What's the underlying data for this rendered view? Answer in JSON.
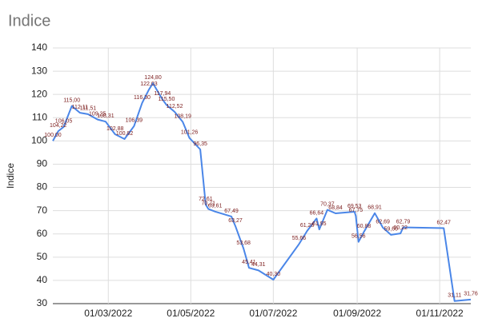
{
  "chart_data": {
    "type": "line",
    "title": "Indice",
    "y_label": "Indice",
    "x": [
      "19/01/2022",
      "23/01/2022",
      "27/01/2022",
      "02/02/2022",
      "08/02/2022",
      "14/02/2022",
      "21/02/2022",
      "27/02/2022",
      "06/03/2022",
      "13/03/2022",
      "20/03/2022",
      "26/03/2022",
      "31/03/2022",
      "03/04/2022",
      "10/04/2022",
      "13/04/2022",
      "19/04/2022",
      "25/04/2022",
      "30/04/2022",
      "08/05/2022",
      "12/05/2022",
      "14/05/2022",
      "19/05/2022",
      "31/05/2022",
      "03/06/2022",
      "09/06/2022",
      "13/06/2022",
      "20/06/2022",
      "01/07/2022",
      "20/07/2022",
      "26/07/2022",
      "02/08/2022",
      "04/08/2022",
      "10/08/2022",
      "16/08/2022",
      "30/08/2022",
      "31/08/2022",
      "02/09/2022",
      "06/09/2022",
      "14/09/2022",
      "20/09/2022",
      "26/09/2022",
      "03/10/2022",
      "05/10/2022",
      "04/11/2022",
      "12/11/2022",
      "24/11/2022"
    ],
    "series": [
      {
        "name": "Indice",
        "color": "#4a86e8",
        "values": [
          100.0,
          104.22,
          106.05,
          115.0,
          112.11,
          111.51,
          109.25,
          108.31,
          102.88,
          100.82,
          106.39,
          116.3,
          122.03,
          124.8,
          117.94,
          115.5,
          112.52,
          108.19,
          101.26,
          96.35,
          72.61,
          70.71,
          69.61,
          67.49,
          63.27,
          53.68,
          45.41,
          44.31,
          40.3,
          55.66,
          61.28,
          66.64,
          61.95,
          70.37,
          68.84,
          69.53,
          67.75,
          56.56,
          60.88,
          68.91,
          62.69,
          59.6,
          60.22,
          62.79,
          62.47,
          31.11,
          31.76
        ],
        "value_labels": [
          "100,00",
          "104,22",
          "106,05",
          "115,00",
          "112,11",
          "111,51",
          "109,25",
          "108,31",
          "102,88",
          "100,82",
          "106,39",
          "116,30",
          "122,03",
          "124,80",
          "117,94",
          "115,50",
          "112,52",
          "108,19",
          "101,26",
          "96,35",
          "72,61",
          "70,71",
          "69,61",
          "67,49",
          "63,27",
          "53,68",
          "45,41",
          "44,31",
          "40,30",
          "55,66",
          "61,28",
          "66,64",
          "61,95",
          "70,37",
          "68,84",
          "69,53",
          "67,75",
          "56,56",
          "60,88",
          "68,91",
          "62,69",
          "59,60",
          "60,22",
          "62,79",
          "62,47",
          "31,11",
          "31,76"
        ]
      }
    ],
    "xlim": [
      "19/01/2022",
      "24/11/2022"
    ],
    "xticks": [
      "01/03/2022",
      "01/05/2022",
      "01/07/2022",
      "01/09/2022",
      "01/11/2022"
    ],
    "ylim": [
      30,
      140
    ],
    "yticks": [
      30,
      40,
      50,
      60,
      70,
      80,
      90,
      100,
      110,
      120,
      130,
      140
    ],
    "grid": true,
    "label_color": "#7b1c1c"
  }
}
